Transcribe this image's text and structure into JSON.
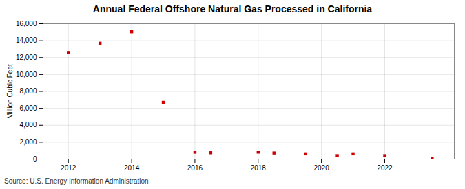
{
  "chart_data": {
    "type": "scatter",
    "title": "Annual Federal Offshore Natural Gas Processed in California",
    "ylabel": "Million Cubic Feet",
    "source": "Source: U.S. Energy Information Administration",
    "x": [
      2012,
      2013,
      2014,
      2015,
      2016,
      2016.5,
      2018,
      2018.5,
      2019.5,
      2020.5,
      2021,
      2022,
      2023.5
    ],
    "values": [
      12600,
      13700,
      15050,
      6700,
      820,
      750,
      830,
      720,
      620,
      400,
      620,
      400,
      80
    ],
    "color": "#cc0000",
    "marker": "square",
    "xlim": [
      2011.2,
      2024.2
    ],
    "xticks": [
      2012,
      2014,
      2016,
      2018,
      2020,
      2022
    ],
    "ylim": [
      0,
      16000
    ],
    "yticks": [
      0,
      {
        "value": 2000,
        "label": "2,000"
      },
      {
        "value": 4000,
        "label": "4,000"
      },
      {
        "value": 6000,
        "label": "6,000"
      },
      {
        "value": 8000,
        "label": "8,000"
      },
      {
        "value": 10000,
        "label": "10,000"
      },
      {
        "value": 12000,
        "label": "12,000"
      },
      {
        "value": 14000,
        "label": "14,000"
      },
      {
        "value": 16000,
        "label": "16,000"
      }
    ],
    "grid": true
  }
}
